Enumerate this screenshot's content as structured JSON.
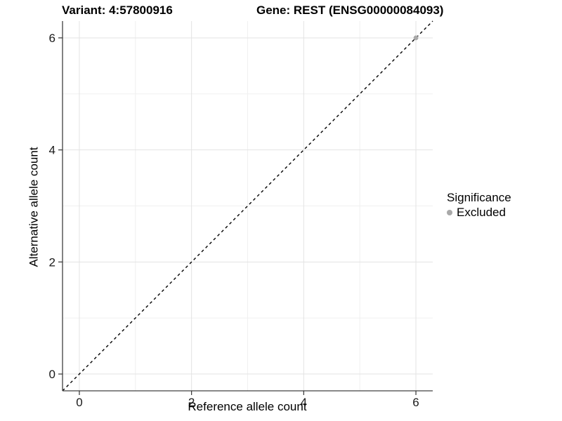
{
  "header": {
    "title_left": "Variant: 4:57800916",
    "title_right": "Gene: REST (ENSG00000084093)"
  },
  "chart_data": {
    "type": "scatter",
    "xlabel": "Reference allele count",
    "ylabel": "Alternative allele count",
    "xlim": [
      -0.3,
      6.3
    ],
    "ylim": [
      -0.3,
      6.3
    ],
    "x_ticks": [
      0,
      2,
      4,
      6
    ],
    "y_ticks": [
      0,
      2,
      4,
      6
    ],
    "x_minor_ticks": [
      1,
      3,
      5
    ],
    "y_minor_ticks": [
      1,
      3,
      5
    ],
    "grid": true,
    "identity_line": {
      "slope": 1,
      "intercept": 0,
      "style": "dashed",
      "color": "#000000"
    },
    "series": [
      {
        "name": "Excluded",
        "color": "#a9a9a9",
        "points": [
          {
            "x": 6,
            "y": 6
          }
        ]
      }
    ],
    "legend": {
      "title": "Significance",
      "position": "right",
      "items": [
        {
          "label": "Excluded",
          "color": "#a9a9a9"
        }
      ]
    },
    "colors": {
      "grid_major": "#e3e3e3",
      "grid_minor": "#f0f0f0",
      "axis_line": "#404040",
      "tick": "#333333",
      "tick_label": "#1a1a1a",
      "background": "#ffffff"
    }
  }
}
